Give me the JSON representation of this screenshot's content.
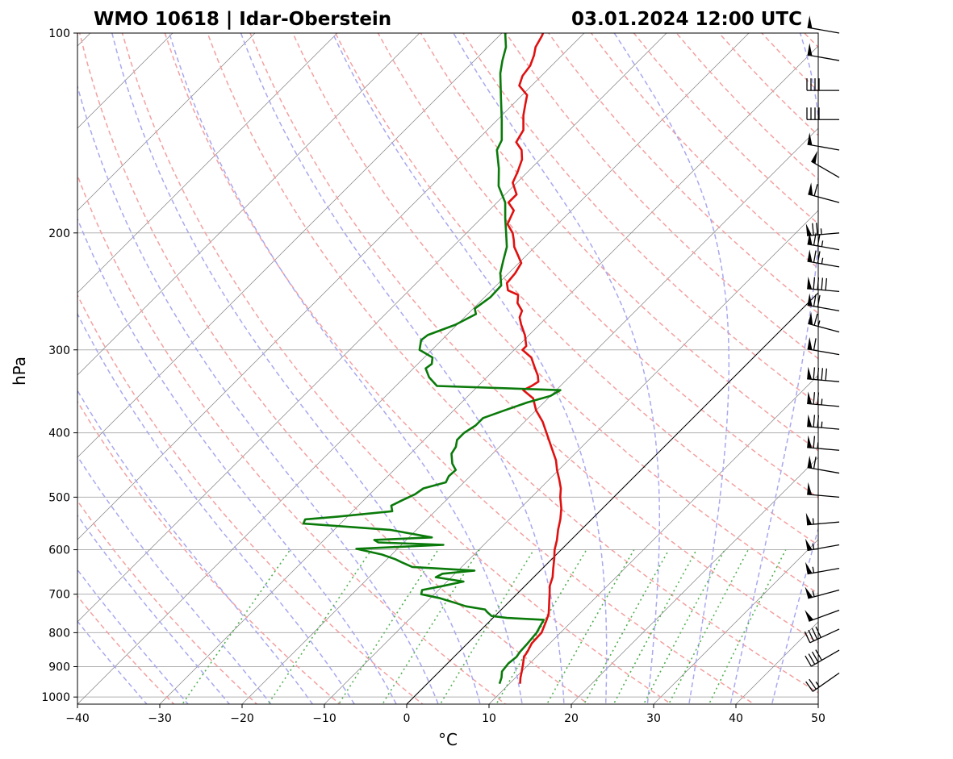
{
  "chart_data": {
    "type": "skew-t",
    "title_left": "WMO 10618 | Idar-Oberstein",
    "title_right": "03.01.2024 12:00 UTC",
    "xlabel": "°C",
    "ylabel": "hPa",
    "xlim": [
      -40,
      50
    ],
    "ylim": [
      1025,
      100
    ],
    "xticks": [
      -40,
      -30,
      -20,
      -10,
      0,
      10,
      20,
      30,
      40,
      50
    ],
    "xtick_labels": [
      "−40",
      "−30",
      "−20",
      "−10",
      "0",
      "10",
      "20",
      "30",
      "40",
      "50"
    ],
    "yticks": [
      100,
      200,
      300,
      400,
      500,
      600,
      700,
      800,
      900,
      1000
    ],
    "ytick_labels": [
      "100",
      "200",
      "300",
      "400",
      "500",
      "600",
      "700",
      "800",
      "900",
      "1000"
    ],
    "colors": {
      "temperature": "#e01010",
      "dewpoint": "#0a7a0a",
      "dry_adiabats": "#f4a0a0",
      "moist_adiabats": "#a8a8f0",
      "mixing_ratio": "#50b050",
      "isotherms": "#808080",
      "grid": "#b0b0b0",
      "zero_isotherm": "#000000"
    },
    "series": [
      {
        "name": "Temperature",
        "points": [
          [
            955,
            11.3
          ],
          [
            935,
            10.6
          ],
          [
            915,
            10.0
          ],
          [
            890,
            9.2
          ],
          [
            870,
            8.5
          ],
          [
            855,
            8.3
          ],
          [
            830,
            7.8
          ],
          [
            800,
            7.7
          ],
          [
            770,
            6.9
          ],
          [
            750,
            6.3
          ],
          [
            730,
            5.4
          ],
          [
            715,
            4.7
          ],
          [
            700,
            4.0
          ],
          [
            680,
            3.0
          ],
          [
            660,
            2.3
          ],
          [
            640,
            1.3
          ],
          [
            620,
            0.3
          ],
          [
            600,
            -0.8
          ],
          [
            580,
            -1.7
          ],
          [
            560,
            -2.8
          ],
          [
            540,
            -3.8
          ],
          [
            520,
            -5.0
          ],
          [
            500,
            -6.5
          ],
          [
            485,
            -7.5
          ],
          [
            470,
            -8.8
          ],
          [
            455,
            -10.2
          ],
          [
            440,
            -11.5
          ],
          [
            420,
            -13.7
          ],
          [
            400,
            -16.0
          ],
          [
            385,
            -17.8
          ],
          [
            370,
            -20.0
          ],
          [
            355,
            -21.8
          ],
          [
            345,
            -24.0
          ],
          [
            340,
            -23.5
          ],
          [
            335,
            -23.2
          ],
          [
            328,
            -24.0
          ],
          [
            318,
            -25.5
          ],
          [
            308,
            -27.0
          ],
          [
            300,
            -29.0
          ],
          [
            296,
            -29.0
          ],
          [
            285,
            -30.5
          ],
          [
            275,
            -32.2
          ],
          [
            268,
            -33.3
          ],
          [
            262,
            -33.8
          ],
          [
            255,
            -35.3
          ],
          [
            248,
            -36.2
          ],
          [
            244,
            -38.0
          ],
          [
            238,
            -39.0
          ],
          [
            230,
            -39.2
          ],
          [
            222,
            -39.7
          ],
          [
            215,
            -41.3
          ],
          [
            210,
            -42.5
          ],
          [
            205,
            -43.4
          ],
          [
            200,
            -44.4
          ],
          [
            194,
            -46.1
          ],
          [
            185,
            -47.0
          ],
          [
            180,
            -48.6
          ],
          [
            175,
            -48.6
          ],
          [
            168,
            -50.5
          ],
          [
            162,
            -51.2
          ],
          [
            155,
            -52.2
          ],
          [
            150,
            -53.4
          ],
          [
            146,
            -55.0
          ],
          [
            140,
            -55.6
          ],
          [
            133,
            -57.4
          ],
          [
            128,
            -58.5
          ],
          [
            124,
            -59.4
          ],
          [
            120,
            -61.5
          ],
          [
            116,
            -62.3
          ],
          [
            112,
            -62.6
          ],
          [
            108,
            -63.4
          ],
          [
            105,
            -64.2
          ],
          [
            101,
            -64.8
          ],
          [
            100,
            -65.0
          ]
        ]
      },
      {
        "name": "Dewpoint",
        "points": [
          [
            955,
            8.8
          ],
          [
            935,
            8.3
          ],
          [
            915,
            7.6
          ],
          [
            890,
            7.4
          ],
          [
            870,
            7.6
          ],
          [
            855,
            7.4
          ],
          [
            830,
            7.3
          ],
          [
            800,
            7.1
          ],
          [
            780,
            6.7
          ],
          [
            765,
            6.4
          ],
          [
            760,
            1.7
          ],
          [
            755,
            -0.4
          ],
          [
            745,
            -1.4
          ],
          [
            738,
            -2.0
          ],
          [
            730,
            -4.7
          ],
          [
            722,
            -6.3
          ],
          [
            710,
            -8.8
          ],
          [
            700,
            -11.6
          ],
          [
            690,
            -12.0
          ],
          [
            680,
            -9.9
          ],
          [
            670,
            -8.0
          ],
          [
            660,
            -11.9
          ],
          [
            652,
            -11.5
          ],
          [
            645,
            -8.0
          ],
          [
            637,
            -16.0
          ],
          [
            627,
            -17.8
          ],
          [
            620,
            -19.0
          ],
          [
            610,
            -21.2
          ],
          [
            598,
            -25.0
          ],
          [
            590,
            -14.9
          ],
          [
            585,
            -23.1
          ],
          [
            580,
            -23.9
          ],
          [
            575,
            -17.2
          ],
          [
            560,
            -23.2
          ],
          [
            548,
            -34.5
          ],
          [
            540,
            -34.8
          ],
          [
            535,
            -31.2
          ],
          [
            525,
            -25.2
          ],
          [
            515,
            -26.0
          ],
          [
            505,
            -25.3
          ],
          [
            495,
            -24.5
          ],
          [
            485,
            -24.2
          ],
          [
            475,
            -22.2
          ],
          [
            465,
            -22.6
          ],
          [
            455,
            -22.5
          ],
          [
            445,
            -23.7
          ],
          [
            430,
            -25.0
          ],
          [
            420,
            -25.3
          ],
          [
            410,
            -26.0
          ],
          [
            400,
            -26.0
          ],
          [
            390,
            -25.5
          ],
          [
            380,
            -25.5
          ],
          [
            370,
            -23.8
          ],
          [
            360,
            -22.0
          ],
          [
            352,
            -20.0
          ],
          [
            345,
            -19.5
          ],
          [
            340,
            -35.0
          ],
          [
            330,
            -37.0
          ],
          [
            320,
            -38.5
          ],
          [
            315,
            -38.3
          ],
          [
            308,
            -39.0
          ],
          [
            300,
            -41.5
          ],
          [
            290,
            -42.5
          ],
          [
            285,
            -42.3
          ],
          [
            275,
            -40.2
          ],
          [
            265,
            -39.0
          ],
          [
            260,
            -39.8
          ],
          [
            250,
            -39.3
          ],
          [
            240,
            -39.4
          ],
          [
            230,
            -41.0
          ],
          [
            220,
            -42.2
          ],
          [
            210,
            -43.4
          ],
          [
            200,
            -45.2
          ],
          [
            190,
            -47.1
          ],
          [
            180,
            -49.0
          ],
          [
            170,
            -51.8
          ],
          [
            160,
            -53.9
          ],
          [
            150,
            -56.4
          ],
          [
            145,
            -57.0
          ],
          [
            135,
            -59.5
          ],
          [
            125,
            -62.3
          ],
          [
            115,
            -65.3
          ],
          [
            110,
            -66.6
          ],
          [
            105,
            -67.8
          ],
          [
            100,
            -69.6
          ]
        ]
      }
    ],
    "wind_barbs": [
      {
        "p": 100,
        "dir": 280,
        "spd": 50
      },
      {
        "p": 110,
        "dir": 280,
        "spd": 50
      },
      {
        "p": 122,
        "dir": 270,
        "spd": 40
      },
      {
        "p": 135,
        "dir": 270,
        "spd": 40
      },
      {
        "p": 150,
        "dir": 280,
        "spd": 50
      },
      {
        "p": 165,
        "dir": 300,
        "spd": 50
      },
      {
        "p": 180,
        "dir": 285,
        "spd": 60
      },
      {
        "p": 200,
        "dir": 265,
        "spd": 75
      },
      {
        "p": 212,
        "dir": 280,
        "spd": 75
      },
      {
        "p": 225,
        "dir": 280,
        "spd": 75
      },
      {
        "p": 245,
        "dir": 275,
        "spd": 90
      },
      {
        "p": 262,
        "dir": 280,
        "spd": 70
      },
      {
        "p": 282,
        "dir": 285,
        "spd": 65
      },
      {
        "p": 305,
        "dir": 280,
        "spd": 60
      },
      {
        "p": 335,
        "dir": 275,
        "spd": 90
      },
      {
        "p": 365,
        "dir": 275,
        "spd": 75
      },
      {
        "p": 395,
        "dir": 275,
        "spd": 75
      },
      {
        "p": 425,
        "dir": 275,
        "spd": 65
      },
      {
        "p": 460,
        "dir": 280,
        "spd": 60
      },
      {
        "p": 500,
        "dir": 275,
        "spd": 50
      },
      {
        "p": 545,
        "dir": 265,
        "spd": 55
      },
      {
        "p": 590,
        "dir": 260,
        "spd": 55
      },
      {
        "p": 640,
        "dir": 260,
        "spd": 55
      },
      {
        "p": 690,
        "dir": 255,
        "spd": 55
      },
      {
        "p": 740,
        "dir": 250,
        "spd": 50
      },
      {
        "p": 790,
        "dir": 245,
        "spd": 40
      },
      {
        "p": 850,
        "dir": 240,
        "spd": 40
      },
      {
        "p": 920,
        "dir": 235,
        "spd": 25
      }
    ]
  }
}
